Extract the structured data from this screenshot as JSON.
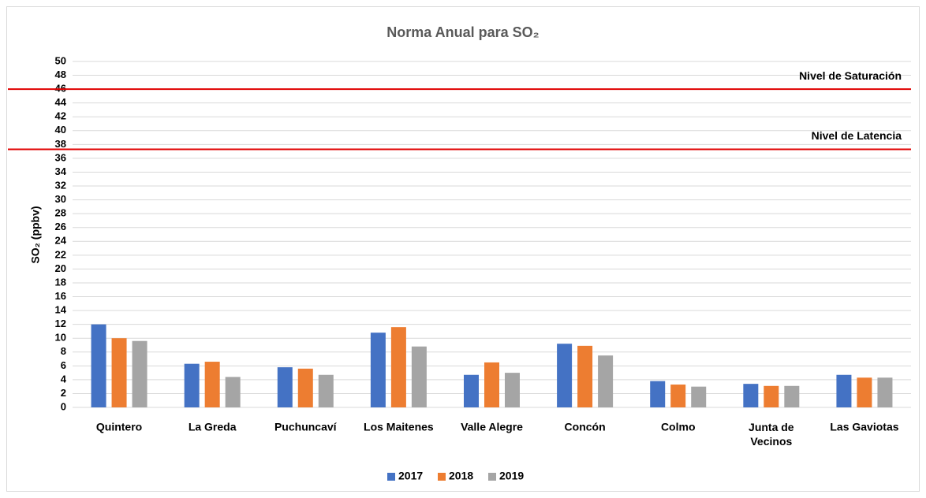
{
  "chart_data": {
    "type": "bar",
    "title": "Norma Anual para SO₂",
    "y_label": "SO₂ (ppbv)",
    "categories": [
      "Quintero",
      "La Greda",
      "Puchuncaví",
      "Los Maitenes",
      "Valle Alegre",
      "Concón",
      "Colmo",
      "Junta de Vecinos",
      "Las Gaviotas"
    ],
    "series": [
      {
        "name": "2017",
        "color": "#4472c4",
        "values": [
          12.0,
          6.3,
          5.8,
          10.8,
          4.7,
          9.2,
          3.8,
          3.4,
          4.7
        ]
      },
      {
        "name": "2018",
        "color": "#ed7d31",
        "values": [
          10.0,
          6.6,
          5.6,
          11.6,
          6.5,
          8.9,
          3.3,
          3.1,
          4.3
        ]
      },
      {
        "name": "2019",
        "color": "#a5a5a5",
        "values": [
          9.6,
          4.4,
          4.7,
          8.8,
          5.0,
          7.5,
          3.0,
          3.1,
          4.3
        ]
      }
    ],
    "reference_lines": [
      {
        "label": "Nivel de Saturación",
        "value": 46,
        "color": "#e00000"
      },
      {
        "label": "Nivel de Latencia",
        "value": 37.3,
        "color": "#e00000"
      }
    ],
    "ylim": [
      0,
      50
    ],
    "yticks": [
      0,
      2,
      4,
      6,
      8,
      10,
      12,
      14,
      16,
      18,
      20,
      22,
      24,
      26,
      28,
      30,
      32,
      34,
      36,
      38,
      40,
      42,
      44,
      46,
      48,
      50
    ],
    "grid": true,
    "legend": "bottom"
  }
}
